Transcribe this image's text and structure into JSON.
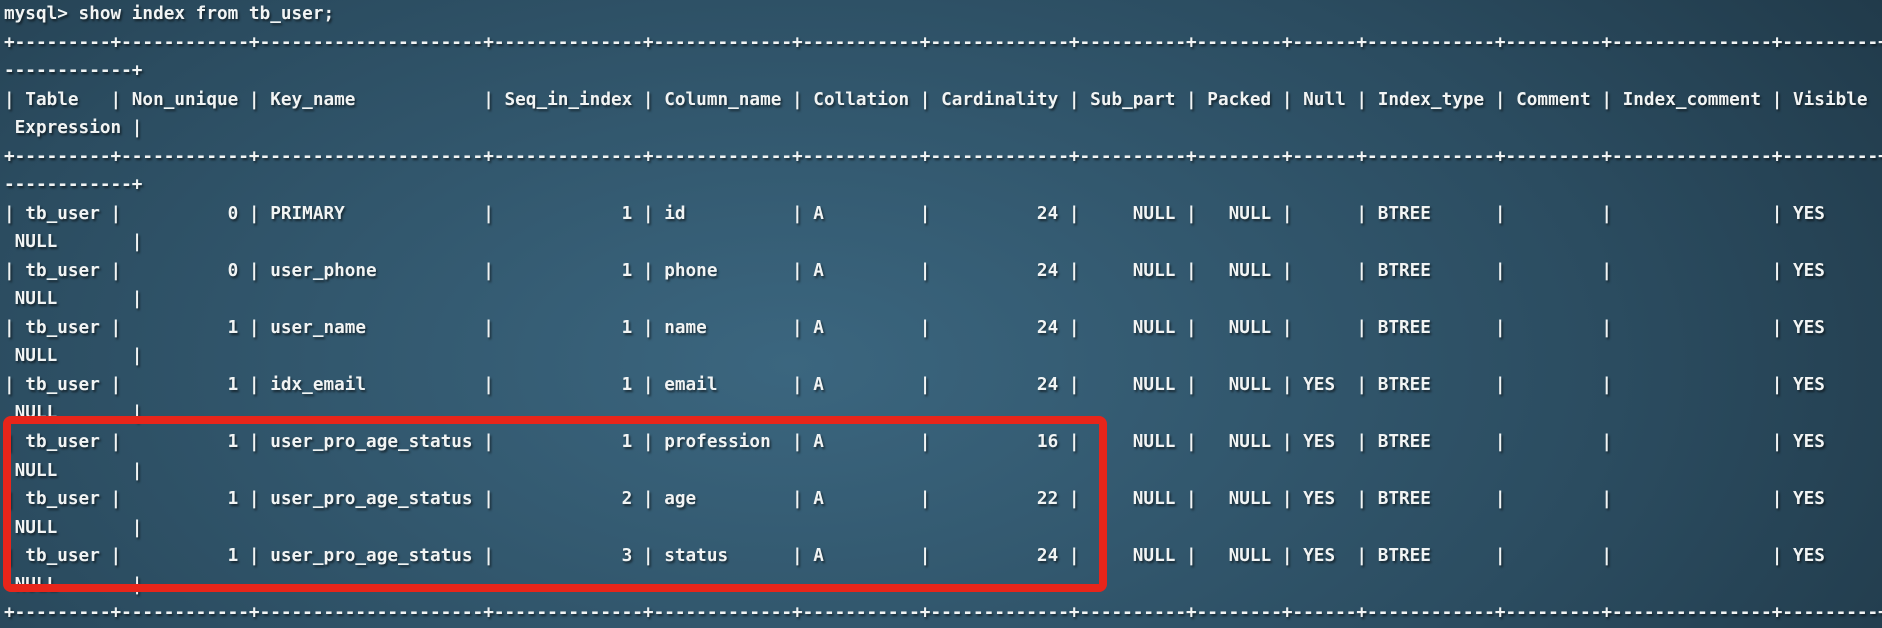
{
  "terminal": {
    "prompt_line": "mysql> show index from tb_user;",
    "wrap_columns": 177
  },
  "table": {
    "columns": [
      {
        "name": "Table",
        "width": 7,
        "align": "left"
      },
      {
        "name": "Non_unique",
        "width": 10,
        "align": "right"
      },
      {
        "name": "Key_name",
        "width": 19,
        "align": "left"
      },
      {
        "name": "Seq_in_index",
        "width": 12,
        "align": "right"
      },
      {
        "name": "Column_name",
        "width": 11,
        "align": "left"
      },
      {
        "name": "Collation",
        "width": 9,
        "align": "left"
      },
      {
        "name": "Cardinality",
        "width": 11,
        "align": "right"
      },
      {
        "name": "Sub_part",
        "width": 8,
        "align": "right"
      },
      {
        "name": "Packed",
        "width": 6,
        "align": "right"
      },
      {
        "name": "Null",
        "width": 4,
        "align": "left"
      },
      {
        "name": "Index_type",
        "width": 10,
        "align": "left"
      },
      {
        "name": "Comment",
        "width": 7,
        "align": "left"
      },
      {
        "name": "Index_comment",
        "width": 13,
        "align": "left"
      },
      {
        "name": "Visible",
        "width": 7,
        "align": "left"
      },
      {
        "name": "Expression",
        "width": 10,
        "align": "left"
      }
    ],
    "rows": [
      [
        "tb_user",
        "0",
        "PRIMARY",
        "1",
        "id",
        "A",
        "24",
        "NULL",
        "NULL",
        "",
        "BTREE",
        "",
        "",
        "YES",
        "NULL"
      ],
      [
        "tb_user",
        "0",
        "user_phone",
        "1",
        "phone",
        "A",
        "24",
        "NULL",
        "NULL",
        "",
        "BTREE",
        "",
        "",
        "YES",
        "NULL"
      ],
      [
        "tb_user",
        "1",
        "user_name",
        "1",
        "name",
        "A",
        "24",
        "NULL",
        "NULL",
        "",
        "BTREE",
        "",
        "",
        "YES",
        "NULL"
      ],
      [
        "tb_user",
        "1",
        "idx_email",
        "1",
        "email",
        "A",
        "24",
        "NULL",
        "NULL",
        "YES",
        "BTREE",
        "",
        "",
        "YES",
        "NULL"
      ],
      [
        "tb_user",
        "1",
        "user_pro_age_status",
        "1",
        "profession",
        "A",
        "16",
        "NULL",
        "NULL",
        "YES",
        "BTREE",
        "",
        "",
        "YES",
        "NULL"
      ],
      [
        "tb_user",
        "1",
        "user_pro_age_status",
        "2",
        "age",
        "A",
        "22",
        "NULL",
        "NULL",
        "YES",
        "BTREE",
        "",
        "",
        "YES",
        "NULL"
      ],
      [
        "tb_user",
        "1",
        "user_pro_age_status",
        "3",
        "status",
        "A",
        "24",
        "NULL",
        "NULL",
        "YES",
        "BTREE",
        "",
        "",
        "YES",
        "NULL"
      ]
    ]
  },
  "annotation": {
    "highlighted_index": "user_pro_age_status",
    "highlighted_rows": [
      5,
      6,
      7
    ],
    "color": "#e8251a"
  },
  "colors": {
    "background_center": "#3b667f",
    "background_mid": "#2b4c60",
    "background_edge": "#1c3240",
    "text": "#f1f4f4",
    "highlight": "#e8251a"
  }
}
